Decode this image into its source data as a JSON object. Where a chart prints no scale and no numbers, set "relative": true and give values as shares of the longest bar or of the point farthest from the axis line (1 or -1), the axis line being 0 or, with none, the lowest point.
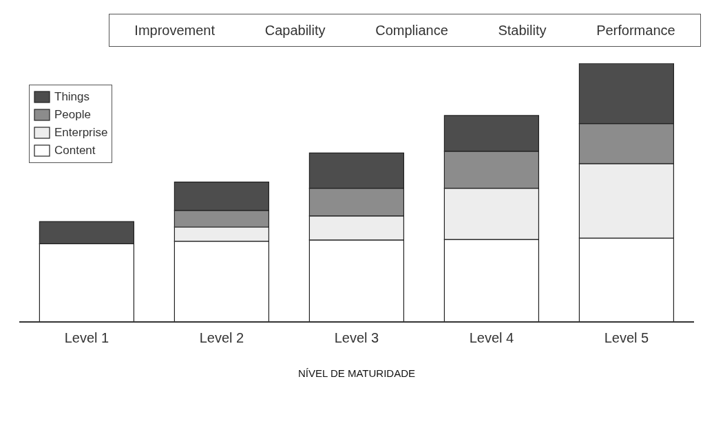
{
  "chart_data": {
    "type": "bar",
    "stacked": true,
    "relative": true,
    "xlabel": "NÍVEL DE MATURIDADE",
    "categories": [
      "Level 1",
      "Level 2",
      "Level 3",
      "Level 4",
      "Level 5"
    ],
    "series": [
      {
        "name": "Content",
        "color": "#ffffff",
        "values": [
          0.302,
          0.312,
          0.317,
          0.319,
          0.324
        ]
      },
      {
        "name": "Enterprise",
        "color": "#ededed",
        "values": [
          0,
          0.055,
          0.093,
          0.198,
          0.288
        ]
      },
      {
        "name": "People",
        "color": "#8c8c8c",
        "values": [
          0,
          0.064,
          0.107,
          0.143,
          0.155
        ]
      },
      {
        "name": "Things",
        "color": "#4d4d4d",
        "values": [
          0.086,
          0.11,
          0.136,
          0.138,
          0.233
        ]
      }
    ],
    "annotations": [
      "Improvement",
      "Capability",
      "Compliance",
      "Stability",
      "Performance"
    ],
    "legend": "top left",
    "grid": false
  }
}
